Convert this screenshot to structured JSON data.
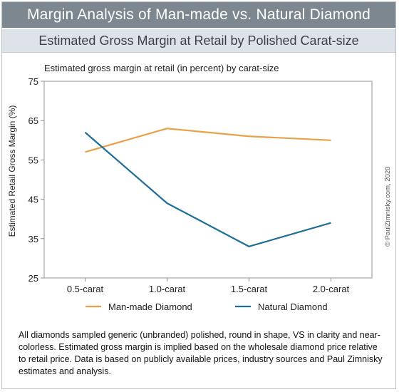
{
  "header": {
    "title": "Margin Analysis of Man-made vs. Natural Diamond",
    "subtitle": "Estimated Gross Margin at Retail by Polished Carat-size"
  },
  "chart_data": {
    "type": "line",
    "title": "Estimated gross margin at retail (in percent) by carat-size",
    "ylabel": "Estimated Retail Gross Margin (%)",
    "xlabel": "",
    "categories": [
      "0.5-carat",
      "1.0-carat",
      "1.5-carat",
      "2.0-carat"
    ],
    "y_ticks": [
      "75",
      "65",
      "55",
      "45",
      "35",
      "25"
    ],
    "ylim": [
      25,
      75
    ],
    "grid": false,
    "legend_position": "bottom",
    "series": [
      {
        "name": "Man-made Diamond",
        "values": [
          57,
          63,
          61,
          60
        ],
        "color": "#e8a04a"
      },
      {
        "name": "Natural Diamond",
        "values": [
          62,
          44,
          33,
          39
        ],
        "color": "#1f6e96"
      }
    ]
  },
  "credit": "© PaulZimnisky.com, 2020",
  "note": "All diamonds sampled generic (unbranded) polished, round in shape, VS in clarity and near-colorless. Estimated gross margin is implied based on the wholesale diamond price relative to retail price. Data is based on publicly available prices, industry sources and Paul Zimnisky estimates and analysis."
}
